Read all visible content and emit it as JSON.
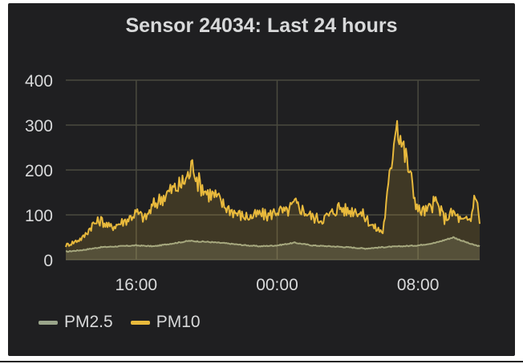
{
  "panel": {
    "title": "Sensor 24034: Last 24 hours"
  },
  "colors": {
    "panel_bg": "#1f1f21",
    "grid": "#4a4a3f",
    "text": "#d8d9da",
    "pm25": "#9aa58b",
    "pm10": "#e8b93c"
  },
  "chart_data": {
    "type": "area",
    "title": "Sensor 24034: Last 24 hours",
    "xlabel": "",
    "ylabel": "",
    "x_ticks": [
      "16:00",
      "00:00",
      "08:00"
    ],
    "y_ticks": [
      0,
      100,
      200,
      300,
      400
    ],
    "ylim": [
      0,
      400
    ],
    "x_hours_range": [
      12,
      35.5
    ],
    "grid": true,
    "legend_placement": "bottom-left",
    "series": [
      {
        "name": "PM2.5",
        "color": "#9aa58b",
        "x_hours": [
          12.0,
          13.0,
          14.0,
          15.0,
          16.0,
          17.0,
          18.0,
          19.0,
          20.0,
          21.0,
          22.0,
          23.0,
          24.0,
          25.0,
          26.0,
          27.0,
          28.0,
          29.0,
          30.0,
          31.0,
          32.0,
          33.0,
          34.0,
          35.0,
          35.5
        ],
        "values": [
          18,
          22,
          28,
          30,
          32,
          30,
          36,
          42,
          40,
          37,
          33,
          30,
          32,
          38,
          32,
          30,
          28,
          25,
          28,
          30,
          32,
          38,
          50,
          35,
          30
        ]
      },
      {
        "name": "PM10",
        "color": "#e8b93c",
        "x_hours": [
          12.0,
          12.5,
          13.0,
          13.5,
          14.0,
          14.5,
          15.0,
          15.5,
          16.0,
          16.5,
          17.0,
          17.5,
          18.0,
          18.5,
          19.0,
          19.25,
          19.5,
          20.0,
          20.5,
          21.0,
          21.5,
          22.0,
          22.5,
          23.0,
          23.5,
          24.0,
          24.5,
          25.0,
          25.5,
          26.0,
          26.5,
          27.0,
          27.5,
          28.0,
          28.5,
          29.0,
          29.5,
          30.0,
          30.25,
          30.5,
          30.75,
          31.0,
          31.25,
          31.5,
          31.75,
          32.0,
          32.5,
          33.0,
          33.5,
          34.0,
          34.5,
          35.0,
          35.25,
          35.5
        ],
        "values": [
          32,
          40,
          50,
          78,
          88,
          72,
          80,
          90,
          105,
          92,
          122,
          140,
          155,
          165,
          190,
          215,
          175,
          150,
          142,
          120,
          108,
          98,
          95,
          102,
          98,
          110,
          105,
          125,
          110,
          95,
          90,
          100,
          118,
          108,
          112,
          95,
          72,
          62,
          140,
          220,
          320,
          275,
          235,
          200,
          150,
          110,
          108,
          130,
          92,
          105,
          85,
          90,
          155,
          80
        ]
      }
    ]
  }
}
